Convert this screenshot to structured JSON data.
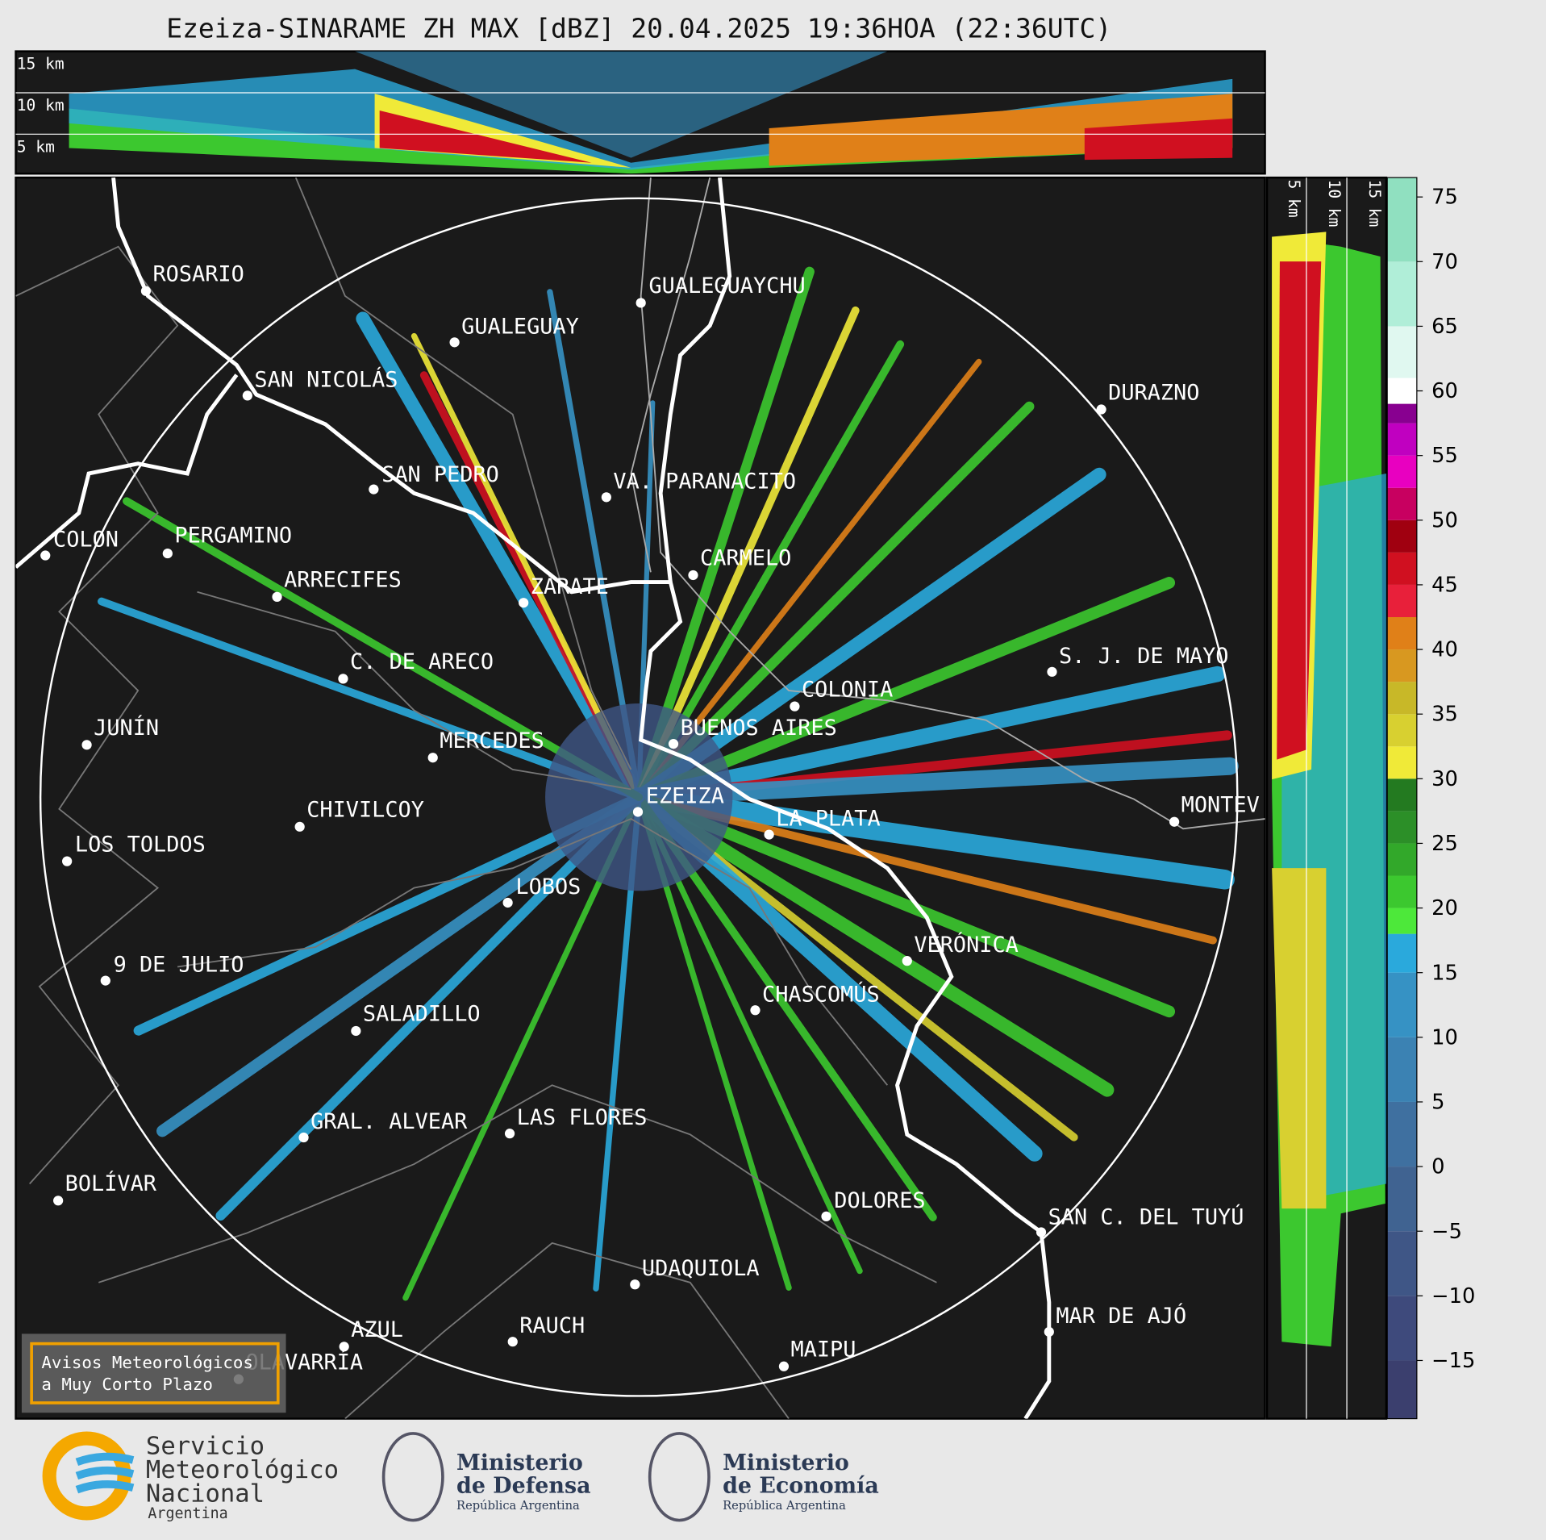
{
  "header": {
    "title": "Ezeiza-SINARAME ZH MAX [dBZ] 20.04.2025 19:36HOA (22:36UTC)"
  },
  "vertical_section_top": {
    "height_labels": [
      "15 km",
      "10 km",
      "5 km"
    ]
  },
  "vertical_section_side": {
    "height_labels": [
      "5 km",
      "10 km",
      "15 km"
    ]
  },
  "map": {
    "cities": [
      "ROSARIO",
      "GUALEGUAYCHU",
      "GUALEGUAY",
      "SAN NICOLÁS",
      "DURAZNO",
      "SAN PEDRO",
      "VA. PARANACITO",
      "COLON",
      "PERGAMINO",
      "CARMELO",
      "ARRECIFES",
      "ZÁRATE",
      "S. J. DE MAYO",
      "C. DE ARECO",
      "COLONIA",
      "JUNÍN",
      "BUENOS AIRES",
      "MERCEDES",
      "EZEIZA",
      "MONTEV",
      "LA PLATA",
      "CHIVILCOY",
      "LOS TOLDOS",
      "LOBOS",
      "VERÓNICA",
      "9 DE JULIO",
      "CHASCOMÚS",
      "SALADILLO",
      "LAS FLORES",
      "GRAL. ALVEAR",
      "BOLÍVAR",
      "DOLORES",
      "SAN C. DEL TUYÚ",
      "UDAQUIOLA",
      "MAR DE AJÓ",
      "RAUCH",
      "AZUL",
      "OLAVARRÍA",
      "MAIPU"
    ]
  },
  "colorbar": {
    "lim": [
      -19.5,
      76.5
    ],
    "ticks": [
      75,
      70,
      65,
      60,
      55,
      50,
      45,
      40,
      35,
      30,
      25,
      20,
      15,
      10,
      5,
      0,
      {
        "value": -5,
        "label": "−5"
      },
      {
        "value": -10,
        "label": "−10"
      },
      {
        "value": -15,
        "label": "−15"
      }
    ],
    "bands": [
      {
        "from": -20,
        "color": "#3b3f6e"
      },
      {
        "from": -15,
        "color": "#3e4a7c"
      },
      {
        "from": -10,
        "color": "#3f5686"
      },
      {
        "from": -5,
        "color": "#406391"
      },
      {
        "from": 0,
        "color": "#3f70a0"
      },
      {
        "from": 5,
        "color": "#3b82b3"
      },
      {
        "from": 10,
        "color": "#3692c4"
      },
      {
        "from": 15,
        "color": "#2aa9dc"
      },
      {
        "from": 18,
        "color": "#4de83a"
      },
      {
        "from": 20,
        "color": "#3cc82f"
      },
      {
        "from": 22.5,
        "color": "#32a82a"
      },
      {
        "from": 25,
        "color": "#2c8f28"
      },
      {
        "from": 27.5,
        "color": "#237a20"
      },
      {
        "from": 30,
        "color": "#f0ea38"
      },
      {
        "from": 32.5,
        "color": "#d8d030"
      },
      {
        "from": 35,
        "color": "#c8b828"
      },
      {
        "from": 37.5,
        "color": "#d89820"
      },
      {
        "from": 40,
        "color": "#e08018"
      },
      {
        "from": 42.5,
        "color": "#e8203a"
      },
      {
        "from": 45,
        "color": "#d01020"
      },
      {
        "from": 47.5,
        "color": "#a00010"
      },
      {
        "from": 50,
        "color": "#c80060"
      },
      {
        "from": 52.5,
        "color": "#e800c0"
      },
      {
        "from": 55,
        "color": "#c000c0"
      },
      {
        "from": 57.5,
        "color": "#880090"
      },
      {
        "from": 59,
        "color": "#ffffff"
      },
      {
        "from": 61,
        "color": "#e0f8f0"
      },
      {
        "from": 65,
        "color": "#b0eed8"
      },
      {
        "from": 70,
        "color": "#90e0c0"
      }
    ]
  },
  "notice": {
    "lines": [
      "Avisos Meteorológicos",
      "a Muy Corto Plazo"
    ]
  },
  "footer": {
    "logos": [
      {
        "lines": [
          "Servicio",
          "Meteorológico",
          "Nacional",
          "Argentina"
        ]
      },
      {
        "lines": [
          "Ministerio",
          "de Defensa",
          "República Argentina"
        ]
      },
      {
        "lines": [
          "Ministerio",
          "de Economía",
          "República Argentina"
        ]
      }
    ]
  }
}
